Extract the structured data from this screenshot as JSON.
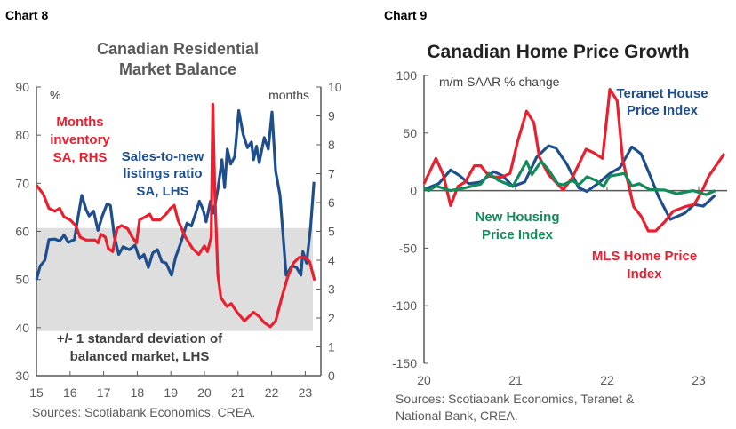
{
  "colors": {
    "red": "#e8202f",
    "blue": "#1f4e8c",
    "green": "#138a5a",
    "band": "#dedede",
    "axis": "#595959"
  },
  "chart_data": [
    {
      "type": "line",
      "label": "Chart 8",
      "title_line1": "Canadian Residential",
      "title_line2": "Market Balance",
      "left_unit": "%",
      "right_unit": "months",
      "ylim_left": [
        30,
        90
      ],
      "ylim_right": [
        0,
        10
      ],
      "yticks_left": [
        "30",
        "40",
        "50",
        "60",
        "70",
        "80",
        "90"
      ],
      "yticks_right": [
        "0",
        "1",
        "2",
        "3",
        "4",
        "5",
        "6",
        "7",
        "8",
        "9",
        "10"
      ],
      "xticks": [
        "15",
        "16",
        "17",
        "18",
        "19",
        "20",
        "21",
        "22",
        "23"
      ],
      "band": {
        "low": 39.3,
        "high": 60.7,
        "label_line1": "+/- 1 standard deviation of",
        "label_line2": "balanced market, LHS"
      },
      "source": "Sources: Scotiabank Economics, CREA.",
      "series": [
        {
          "name_lines": [
            "Months",
            "inventory",
            "SA, RHS"
          ],
          "axis": "right",
          "color": "red",
          "x": [
            15,
            15.2,
            15.37,
            15.55,
            15.69,
            15.82,
            16,
            16.17,
            16.3,
            16.48,
            16.74,
            16.83,
            16.92,
            17.05,
            17.14,
            17.27,
            17.4,
            17.53,
            17.71,
            17.85,
            17.98,
            18.07,
            18.24,
            18.37,
            18.46,
            18.68,
            18.86,
            18.99,
            19.1,
            19.21,
            19.43,
            19.65,
            19.83,
            20,
            20.09,
            20.2,
            20.25,
            20.31,
            20.4,
            20.49,
            20.67,
            20.8,
            20.97,
            21.19,
            21.46,
            21.63,
            21.77,
            21.96,
            22.12,
            22.3,
            22.47,
            22.65,
            22.82,
            23,
            23.13,
            23.28
          ],
          "y": [
            6.6,
            6.3,
            5.8,
            5.7,
            5.8,
            5.5,
            5.4,
            5.2,
            4.8,
            4.7,
            4.7,
            4.6,
            4.9,
            4.8,
            4.4,
            4.3,
            5.1,
            5.2,
            5.1,
            4.8,
            4.6,
            5.4,
            5.5,
            5.6,
            5.4,
            5.4,
            5.6,
            5.8,
            5.9,
            5.4,
            4.8,
            4.4,
            4.2,
            4.5,
            4.3,
            4.8,
            9.4,
            6.3,
            3.5,
            2.7,
            2.4,
            2.5,
            2.2,
            1.9,
            2.2,
            2.05,
            1.85,
            1.7,
            1.9,
            2.7,
            3.4,
            3.9,
            4.1,
            4.1,
            3.95,
            3.3
          ]
        },
        {
          "name_lines": [
            "Sales-to-new",
            "listings ratio",
            "SA, LHS"
          ],
          "axis": "left",
          "color": "blue",
          "x": [
            15,
            15.11,
            15.25,
            15.37,
            15.55,
            15.69,
            15.82,
            15.95,
            16.13,
            16.23,
            16.35,
            16.48,
            16.57,
            16.7,
            16.83,
            16.96,
            17.1,
            17.2,
            17.32,
            17.45,
            17.58,
            17.76,
            17.93,
            18.07,
            18.2,
            18.33,
            18.46,
            18.6,
            18.73,
            18.86,
            19.02,
            19.14,
            19.3,
            19.48,
            19.61,
            19.74,
            19.85,
            19.96,
            20.05,
            20.18,
            20.27,
            20.4,
            20.52,
            20.6,
            20.68,
            20.78,
            20.9,
            21.02,
            21.15,
            21.28,
            21.4,
            21.46,
            21.55,
            21.63,
            21.78,
            21.9,
            22.01,
            22.12,
            22.25,
            22.43,
            22.6,
            22.74,
            22.87,
            22.93,
            23.04,
            23.16,
            23.26
          ],
          "y": [
            50,
            52.8,
            54,
            58.3,
            58.4,
            58,
            59.2,
            57.7,
            58.3,
            62.6,
            67.5,
            64.5,
            63.2,
            64.2,
            60.2,
            63.2,
            65.7,
            65.4,
            58.9,
            55.2,
            56.8,
            56.2,
            57.1,
            54.3,
            55.2,
            52.5,
            55.5,
            56.2,
            53.7,
            53.4,
            50.9,
            54.6,
            57.7,
            61.7,
            61.1,
            63.8,
            66.3,
            64.5,
            62,
            66.3,
            63.8,
            68.8,
            74.9,
            69.1,
            77.1,
            74,
            75.5,
            85.1,
            80.2,
            77.4,
            78.6,
            74.9,
            77.7,
            74.3,
            79.5,
            77.1,
            84.8,
            72.5,
            67.5,
            50.9,
            52.8,
            52.5,
            50.9,
            55.8,
            53.4,
            60.8,
            70.3
          ]
        }
      ]
    },
    {
      "type": "line",
      "label": "Chart 9",
      "title": "Canadian Home Price Growth",
      "ylabel": "m/m SAAR % change",
      "ylim": [
        -150,
        100
      ],
      "yticks": [
        "-150",
        "-100",
        "-50",
        "0",
        "50",
        "100"
      ],
      "xticks": [
        "20",
        "21",
        "22",
        "23"
      ],
      "source_line1": "Sources: Scotiabank Economics, Teranet &",
      "source_line2": "National Bank, CREA.",
      "series": [
        {
          "name_lines": [
            "Teranet House",
            "Price Index"
          ],
          "color": "blue",
          "x": [
            20,
            20.16,
            20.29,
            20.39,
            20.49,
            20.62,
            20.76,
            20.86,
            20.97,
            21.1,
            21.23,
            21.36,
            21.44,
            21.56,
            21.69,
            21.78,
            21.9,
            22.03,
            22.14,
            22.27,
            22.37,
            22.46,
            22.56,
            22.69,
            22.85,
            22.95,
            23.05,
            23.18
          ],
          "y": [
            1,
            6,
            18,
            13,
            6,
            7.5,
            16.5,
            13,
            3.6,
            7.5,
            29,
            39,
            37,
            23,
            2.4,
            -0.7,
            6.2,
            15,
            20,
            38,
            32,
            15,
            -5,
            -25,
            -19.5,
            -12,
            -13.5,
            -4
          ]
        },
        {
          "name_lines": [
            "MLS Home Price",
            "Index"
          ],
          "color": "red",
          "x": [
            20,
            20.13,
            20.21,
            20.29,
            20.37,
            20.45,
            20.55,
            20.62,
            20.71,
            20.84,
            20.94,
            21.02,
            21.12,
            21.2,
            21.26,
            21.36,
            21.52,
            21.62,
            21.77,
            21.85,
            21.95,
            22.03,
            22.11,
            22.17,
            22.29,
            22.37,
            22.45,
            22.53,
            22.63,
            22.72,
            22.85,
            22.95,
            23.03,
            23.11,
            23.28
          ],
          "y": [
            6,
            28,
            14,
            -13,
            3.6,
            7.5,
            21.6,
            21.6,
            12.6,
            11.4,
            15,
            42,
            69,
            59,
            29,
            14,
            0.6,
            11.4,
            36,
            33,
            28,
            88,
            78,
            27,
            -14,
            -22,
            -35,
            -35,
            -27,
            -18,
            -14,
            -12,
            -1.5,
            12.6,
            32
          ]
        },
        {
          "name_lines": [
            "New Housing",
            "Price Index"
          ],
          "color": "green",
          "x": [
            20,
            20.05,
            20.13,
            20.29,
            20.45,
            20.62,
            20.71,
            20.81,
            20.97,
            21.12,
            21.18,
            21.28,
            21.36,
            21.46,
            21.52,
            21.62,
            21.69,
            21.78,
            21.88,
            21.96,
            22.03,
            22.19,
            22.27,
            22.35,
            22.46,
            22.63,
            22.76,
            22.94,
            23.08,
            23.18
          ],
          "y": [
            2.4,
            0,
            4,
            0,
            2.4,
            5.7,
            15,
            9,
            3.6,
            25.5,
            14,
            25.5,
            18,
            6,
            5,
            8.8,
            5,
            12,
            8.8,
            3.6,
            12.6,
            15,
            4,
            6,
            1,
            0.5,
            -2.8,
            0,
            -3.5,
            0
          ]
        }
      ]
    }
  ]
}
